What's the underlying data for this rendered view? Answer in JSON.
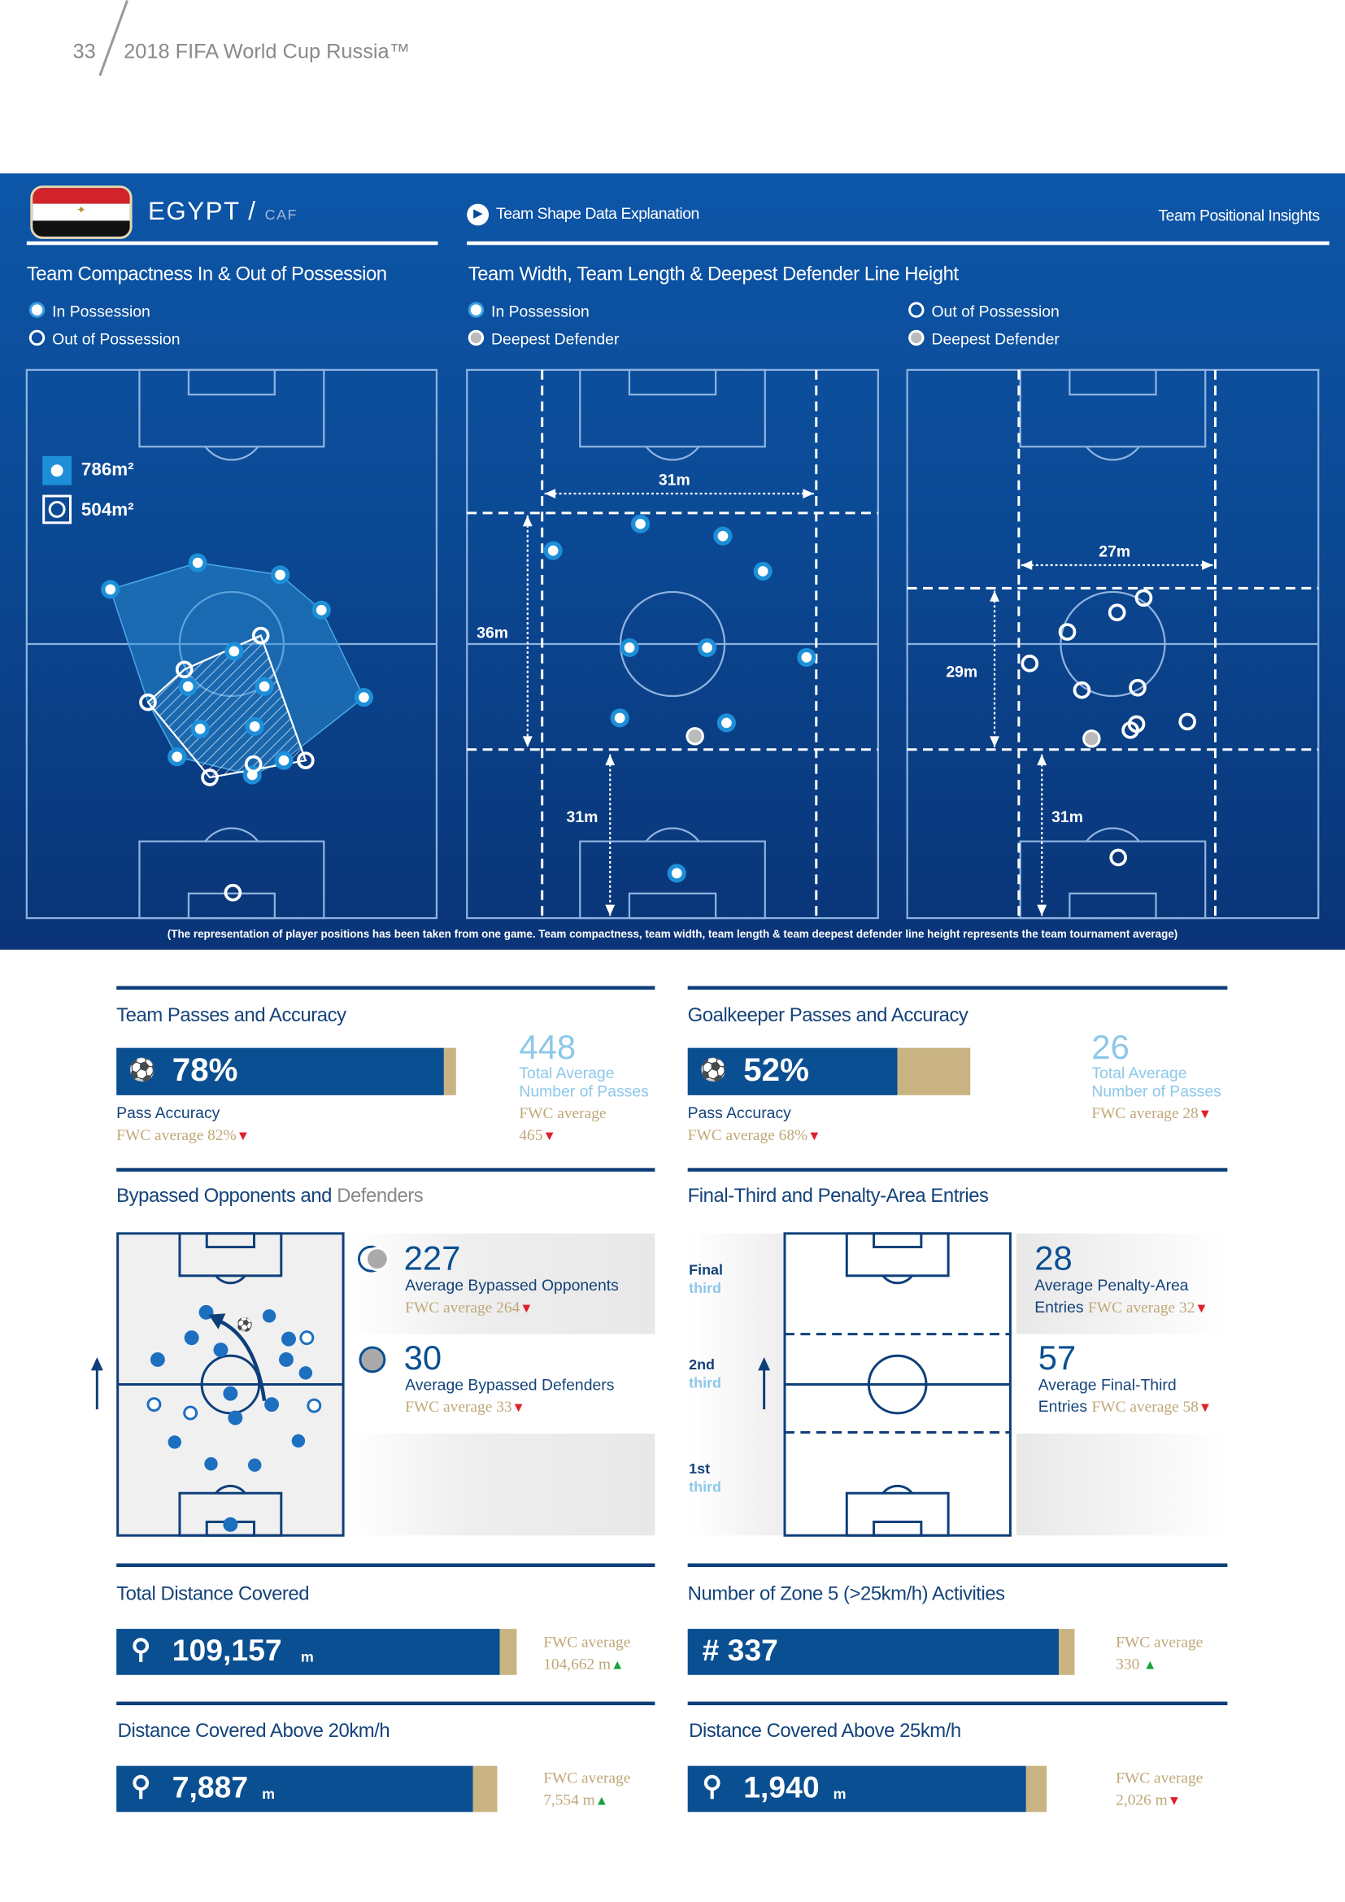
{
  "header": {
    "page_number": "33",
    "title": "2018 FIFA World Cup Russia™"
  },
  "team": {
    "name": "EGYPT",
    "separator": "/",
    "confederation": "CAF",
    "flag": "egypt-flag"
  },
  "nav": {
    "explanation_link": "Team Shape Data Explanation",
    "insights_label": "Team Positional Insights"
  },
  "compactness": {
    "title": "Team Compactness In & Out of Possession",
    "legend_in": "In Possession",
    "legend_out": "Out of Possession",
    "area_in": "786m²",
    "area_out": "504m²"
  },
  "width_length": {
    "title": "Team Width, Team Length & Deepest Defender Line Height",
    "in": {
      "legend_a": "In Possession",
      "legend_b": "Deepest Defender",
      "width": "31m",
      "length": "36m",
      "defender_height": "31m"
    },
    "out": {
      "legend_a": "Out of Possession",
      "legend_b": "Deepest Defender",
      "width": "27m",
      "length": "29m",
      "defender_height": "31m"
    }
  },
  "footnote": "(The representation of player positions has been taken from one game. Team compactness, team width, team length & team deepest defender line height represents the team tournament average)",
  "team_passes": {
    "title": "Team Passes and Accuracy",
    "accuracy": "78%",
    "accuracy_fraction": 0.78,
    "accuracy_label": "Pass Accuracy",
    "fwc_accuracy": "FWC average 82%",
    "total": "448",
    "total_label_1": "Total Average",
    "total_label_2": "Number of Passes",
    "fwc_total_1": "FWC average",
    "fwc_total_2": "465"
  },
  "gk_passes": {
    "title": "Goalkeeper Passes and Accuracy",
    "accuracy": "52%",
    "accuracy_fraction": 0.52,
    "accuracy_label": "Pass Accuracy",
    "fwc_accuracy": "FWC average 68%",
    "total": "26",
    "total_label_1": "Total Average",
    "total_label_2": "Number of Passes",
    "fwc_total": "FWC average 28"
  },
  "bypassed": {
    "title_a": "Bypassed Opponents and",
    "title_b": "Defenders",
    "opponents": "227",
    "opponents_label": "Average Bypassed Opponents",
    "opponents_fwc": "FWC average 264",
    "defenders": "30",
    "defenders_label": "Average Bypassed Defenders",
    "defenders_fwc": "FWC average 33"
  },
  "entries": {
    "title": "Final-Third and Penalty-Area Entries",
    "thirds": [
      {
        "a": "Final",
        "b": "third"
      },
      {
        "a": "2nd",
        "b": "third"
      },
      {
        "a": "1st",
        "b": "third"
      }
    ],
    "penalty": "28",
    "penalty_label": "Average Penalty-Area",
    "penalty_label_2": "Entries",
    "penalty_fwc": "FWC average 32",
    "final_third": "57",
    "final_third_label": "Average Final-Third",
    "final_third_label_2": "Entries",
    "final_third_fwc": "FWC average 58"
  },
  "distance": {
    "title": "Total Distance Covered",
    "value": "109,157",
    "unit": "m",
    "fwc_1": "FWC average",
    "fwc_2": "104,662 m"
  },
  "zone5": {
    "title": "Number of Zone 5 (>25km/h) Activities",
    "value": "# 337",
    "fwc_1": "FWC average",
    "fwc_2": "330"
  },
  "dist20": {
    "title": "Distance Covered Above 20km/h",
    "value": "7,887",
    "unit": "m",
    "fwc_1": "FWC average",
    "fwc_2": "7,554 m"
  },
  "dist25": {
    "title": "Distance Covered Above 25km/h",
    "value": "1,940",
    "unit": "m",
    "fwc_1": "FWC average",
    "fwc_2": "2,026 m"
  },
  "colors": {
    "band": "#0b4994",
    "bar": "#0a4f91",
    "gold": "#c9b383",
    "down": "#e0202a",
    "up": "#1aa040"
  }
}
